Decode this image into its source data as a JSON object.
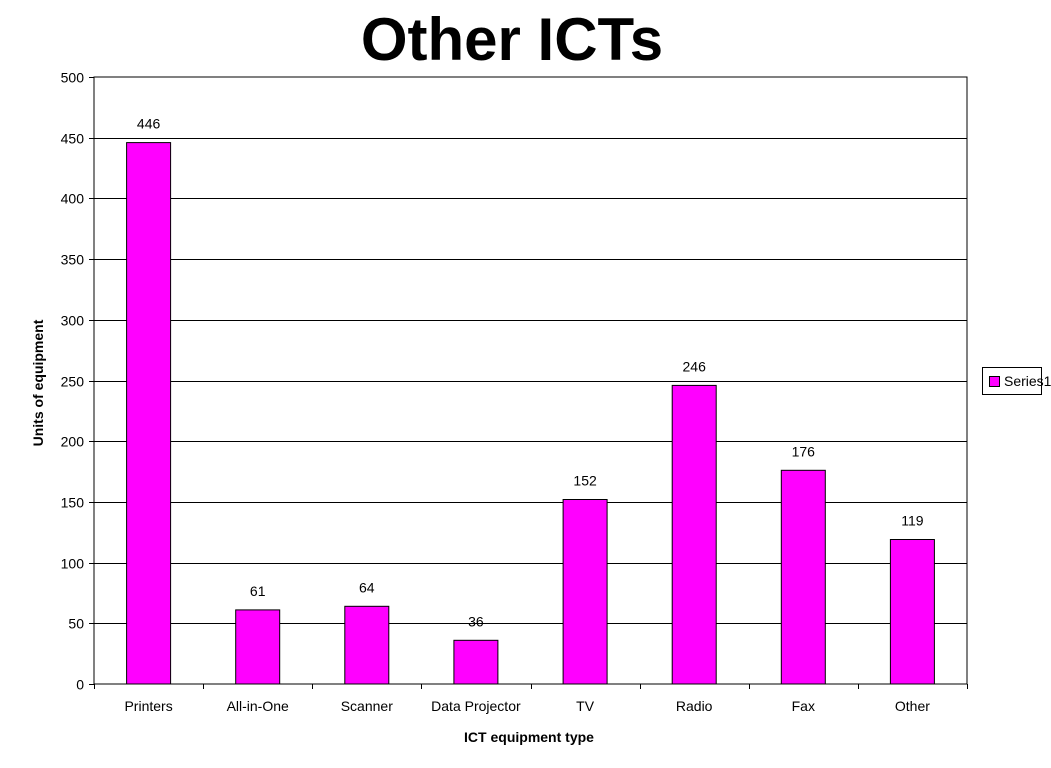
{
  "chart_data": {
    "type": "bar",
    "title": "Other ICTs",
    "xlabel": "ICT equipment type",
    "ylabel": "Units of equipment",
    "categories": [
      "Printers",
      "All-in-One",
      "Scanner",
      "Data Projector",
      "TV",
      "Radio",
      "Fax",
      "Other"
    ],
    "series": [
      {
        "name": "Series1",
        "values": [
          446,
          61,
          64,
          36,
          152,
          246,
          176,
          119
        ],
        "color": "#ff00ff"
      }
    ],
    "ylim": [
      0,
      500
    ],
    "yticks": [
      0,
      50,
      100,
      150,
      200,
      250,
      300,
      350,
      400,
      450,
      500
    ],
    "grid": true,
    "data_labels": true,
    "legend_position": "right"
  }
}
